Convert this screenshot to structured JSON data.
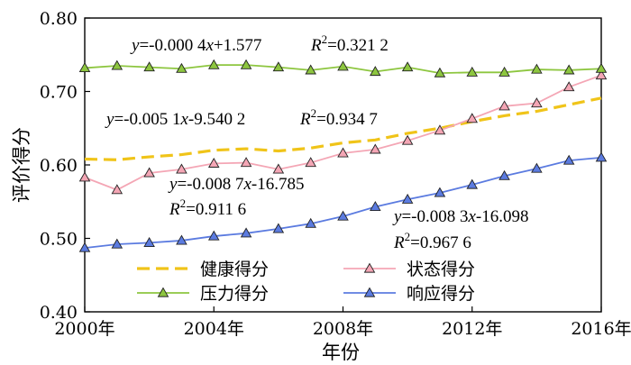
{
  "chart_data": {
    "type": "line",
    "xlabel": "年份",
    "ylabel": "评价得分",
    "xlim": [
      2000,
      2016
    ],
    "ylim": [
      0.4,
      0.8
    ],
    "grid": false,
    "legend_position": "bottom-center",
    "x_ticks": [
      {
        "value": 2000,
        "label": "2000年"
      },
      {
        "value": 2004,
        "label": "2004年"
      },
      {
        "value": 2008,
        "label": "2008年"
      },
      {
        "value": 2012,
        "label": "2012年"
      },
      {
        "value": 2016,
        "label": "2016年"
      }
    ],
    "y_ticks": [
      {
        "value": 0.8,
        "label": "0.80"
      },
      {
        "value": 0.7,
        "label": "0.70"
      },
      {
        "value": 0.6,
        "label": "0.60"
      },
      {
        "value": 0.5,
        "label": "0.50"
      },
      {
        "value": 0.4,
        "label": "0.40"
      }
    ],
    "x": [
      2000,
      2001,
      2002,
      2003,
      2004,
      2005,
      2006,
      2007,
      2008,
      2009,
      2010,
      2011,
      2012,
      2013,
      2014,
      2015,
      2016
    ],
    "series": [
      {
        "name": "健康得分",
        "color": "#f0c419",
        "style": "dashed",
        "marker": "none",
        "values": [
          0.608,
          0.607,
          0.611,
          0.614,
          0.62,
          0.622,
          0.619,
          0.623,
          0.63,
          0.634,
          0.643,
          0.65,
          0.659,
          0.667,
          0.673,
          0.682,
          0.691
        ]
      },
      {
        "name": "状态得分",
        "color": "#f4a6b5",
        "style": "solid",
        "marker": "triangle",
        "values": [
          0.583,
          0.566,
          0.589,
          0.594,
          0.602,
          0.603,
          0.594,
          0.603,
          0.616,
          0.621,
          0.633,
          0.647,
          0.663,
          0.68,
          0.684,
          0.706,
          0.722
        ]
      },
      {
        "name": "压力得分",
        "color": "#8dc63f",
        "style": "solid",
        "marker": "triangle",
        "values": [
          0.732,
          0.735,
          0.733,
          0.731,
          0.736,
          0.736,
          0.733,
          0.729,
          0.734,
          0.727,
          0.733,
          0.725,
          0.726,
          0.726,
          0.73,
          0.729,
          0.731
        ]
      },
      {
        "name": "响应得分",
        "color": "#5b7be0",
        "style": "solid",
        "marker": "triangle",
        "values": [
          0.487,
          0.492,
          0.494,
          0.497,
          0.503,
          0.507,
          0.513,
          0.52,
          0.53,
          0.543,
          0.553,
          0.562,
          0.573,
          0.585,
          0.595,
          0.606,
          0.61
        ]
      }
    ],
    "annotations": [
      {
        "series": "压力得分",
        "coef": "y=-0.000 4x+1.577",
        "r2_value": "=0.321 2"
      },
      {
        "series": "健康得分",
        "coef": "y=-0.005 1x-9.540 2",
        "r2_value": "=0.934 7"
      },
      {
        "series": "状态得分",
        "coef": "y=-0.008 7x-16.785",
        "r2_value": "=0.911 6"
      },
      {
        "series": "响应得分",
        "coef": "y=-0.008 3x-16.098",
        "r2_value": "=0.967 6"
      }
    ],
    "r2_label": "R",
    "r2_sup": "2"
  }
}
